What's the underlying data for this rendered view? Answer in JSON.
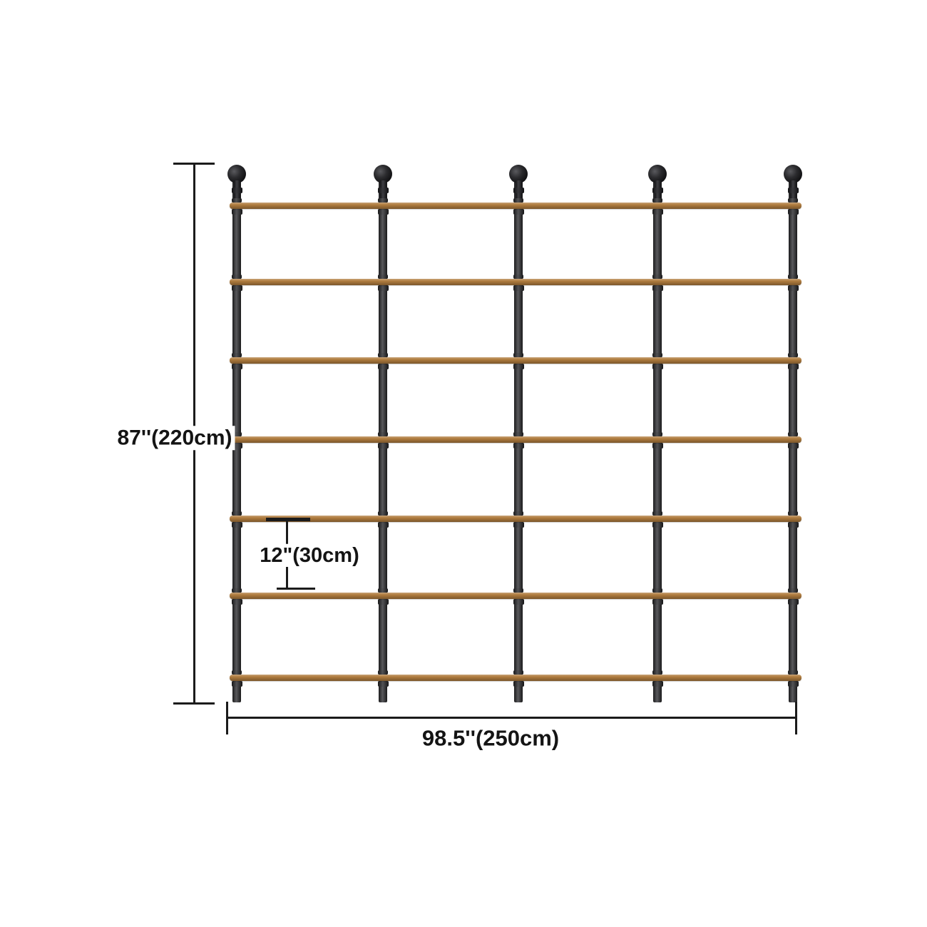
{
  "diagram": {
    "kind": "product-dimension-diagram",
    "labels": {
      "height": "87''(220cm)",
      "width": "98.5''(250cm)",
      "shelf_spacing": "12\"(30cm)"
    },
    "structure": {
      "post_count": 5,
      "shelf_count": 7
    },
    "colors": {
      "background": "#ffffff",
      "wood_shelf": "#b07c3e",
      "pipe": "#3a3a3d",
      "dimension_line": "#1b1b1b"
    }
  }
}
